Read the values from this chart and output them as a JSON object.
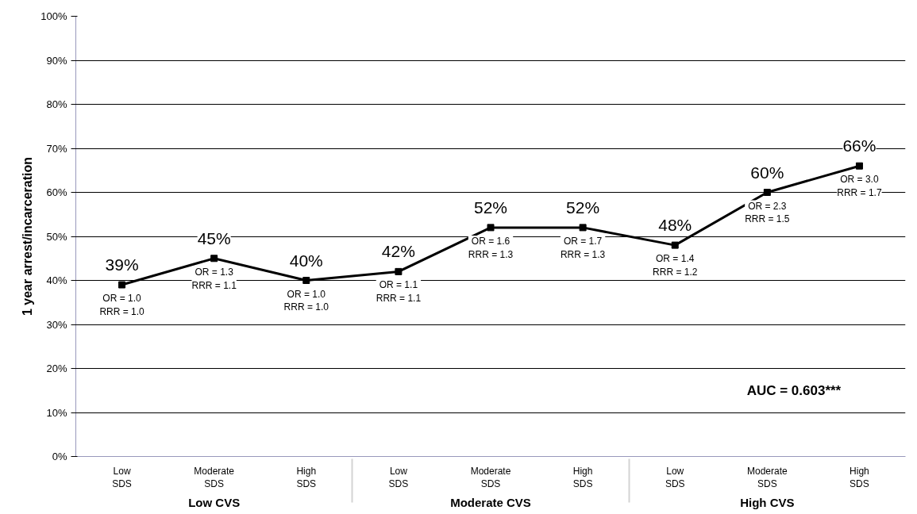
{
  "chart_data": {
    "type": "line",
    "ylabel": "1 year arrest/incarceration",
    "categories": [
      "Low\nSDS",
      "Moderate\nSDS",
      "High\nSDS",
      "Low\nSDS",
      "Moderate\nSDS",
      "High\nSDS",
      "Low\nSDS",
      "Moderate\nSDS",
      "High\nSDS"
    ],
    "series": [
      {
        "color": "#000000",
        "values": [
          39,
          45,
          40,
          42,
          52,
          52,
          48,
          60,
          66
        ],
        "value_labels": [
          "39%",
          "45%",
          "40%",
          "42%",
          "52%",
          "52%",
          "48%",
          "60%",
          "66%"
        ]
      }
    ],
    "ylim": [
      0,
      100
    ],
    "yticks": [
      {
        "value": 0,
        "label": "0%"
      },
      {
        "value": 10,
        "label": "10%"
      },
      {
        "value": 20,
        "label": "20%"
      },
      {
        "value": 30,
        "label": "30%"
      },
      {
        "value": 40,
        "label": "40%"
      },
      {
        "value": 50,
        "label": "50%"
      },
      {
        "value": 60,
        "label": "60%"
      },
      {
        "value": 70,
        "label": "70%"
      },
      {
        "value": 80,
        "label": "80%"
      },
      {
        "value": 90,
        "label": "90%"
      },
      {
        "value": 100,
        "label": "100%"
      }
    ],
    "grid": "y",
    "marker": "square",
    "line_style": "solid",
    "annotations": [
      "OR = 1.0\nRRR = 1.0",
      "OR = 1.3\nRRR = 1.1",
      "OR = 1.0\nRRR = 1.0",
      "OR = 1.1\nRRR = 1.1",
      "OR = 1.6\nRRR = 1.3",
      "OR = 1.7\nRRR = 1.3",
      "OR = 1.4\nRRR = 1.2",
      "OR = 2.3\nRRR = 1.5",
      "OR = 3.0\nRRR = 1.7",
      "AUC = 0.603***",
      "Low CVS",
      "Moderate CVS",
      "High CVS"
    ]
  }
}
